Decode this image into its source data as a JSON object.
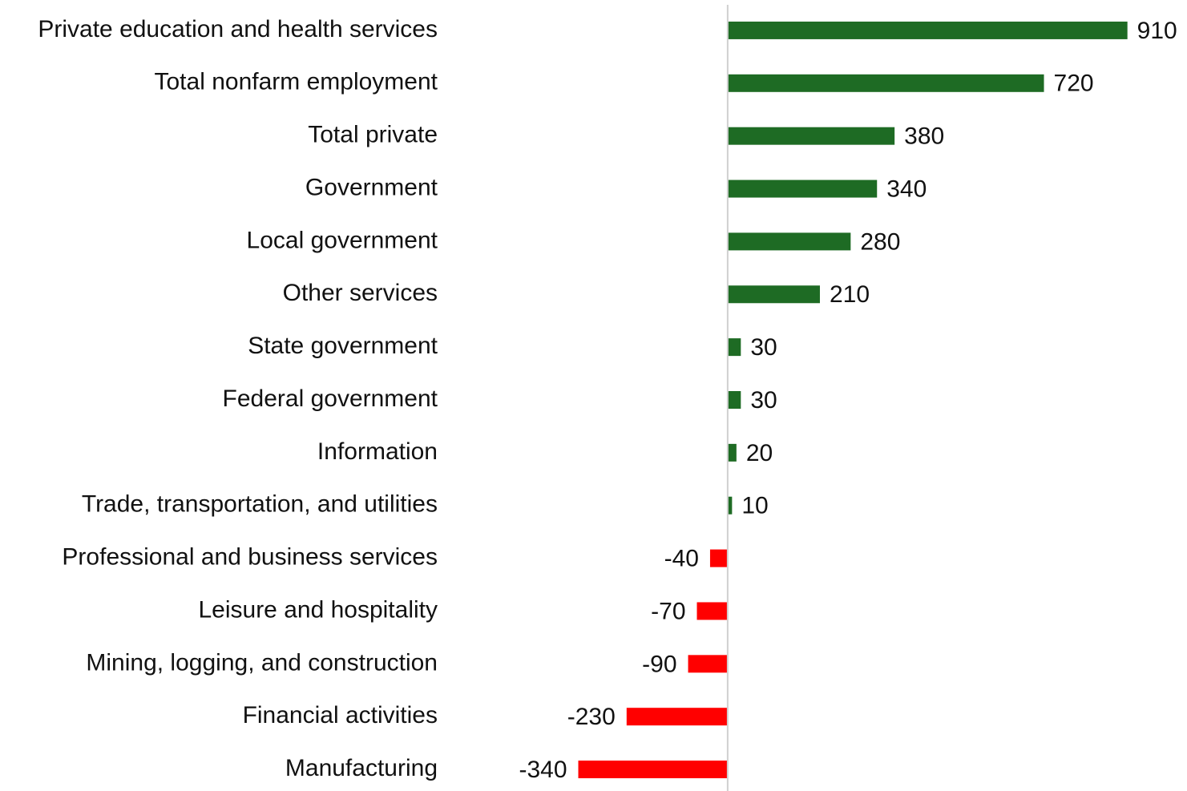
{
  "chart_data": {
    "type": "barh",
    "categories": [
      "Private education and health services",
      "Total nonfarm employment",
      "Total private",
      "Government",
      "Local government",
      "Other services",
      "State government",
      "Federal government",
      "Information",
      "Trade, transportation, and utilities",
      "Professional and business services",
      "Leisure and hospitality",
      "Mining, logging, and construction",
      "Financial activities",
      "Manufacturing"
    ],
    "values": [
      910,
      720,
      380,
      340,
      280,
      210,
      30,
      30,
      20,
      10,
      -40,
      -70,
      -90,
      -230,
      -340
    ],
    "color": "#1e6b24",
    "negative_color": "#ff0000",
    "xlim": [
      -600,
      1000
    ]
  }
}
